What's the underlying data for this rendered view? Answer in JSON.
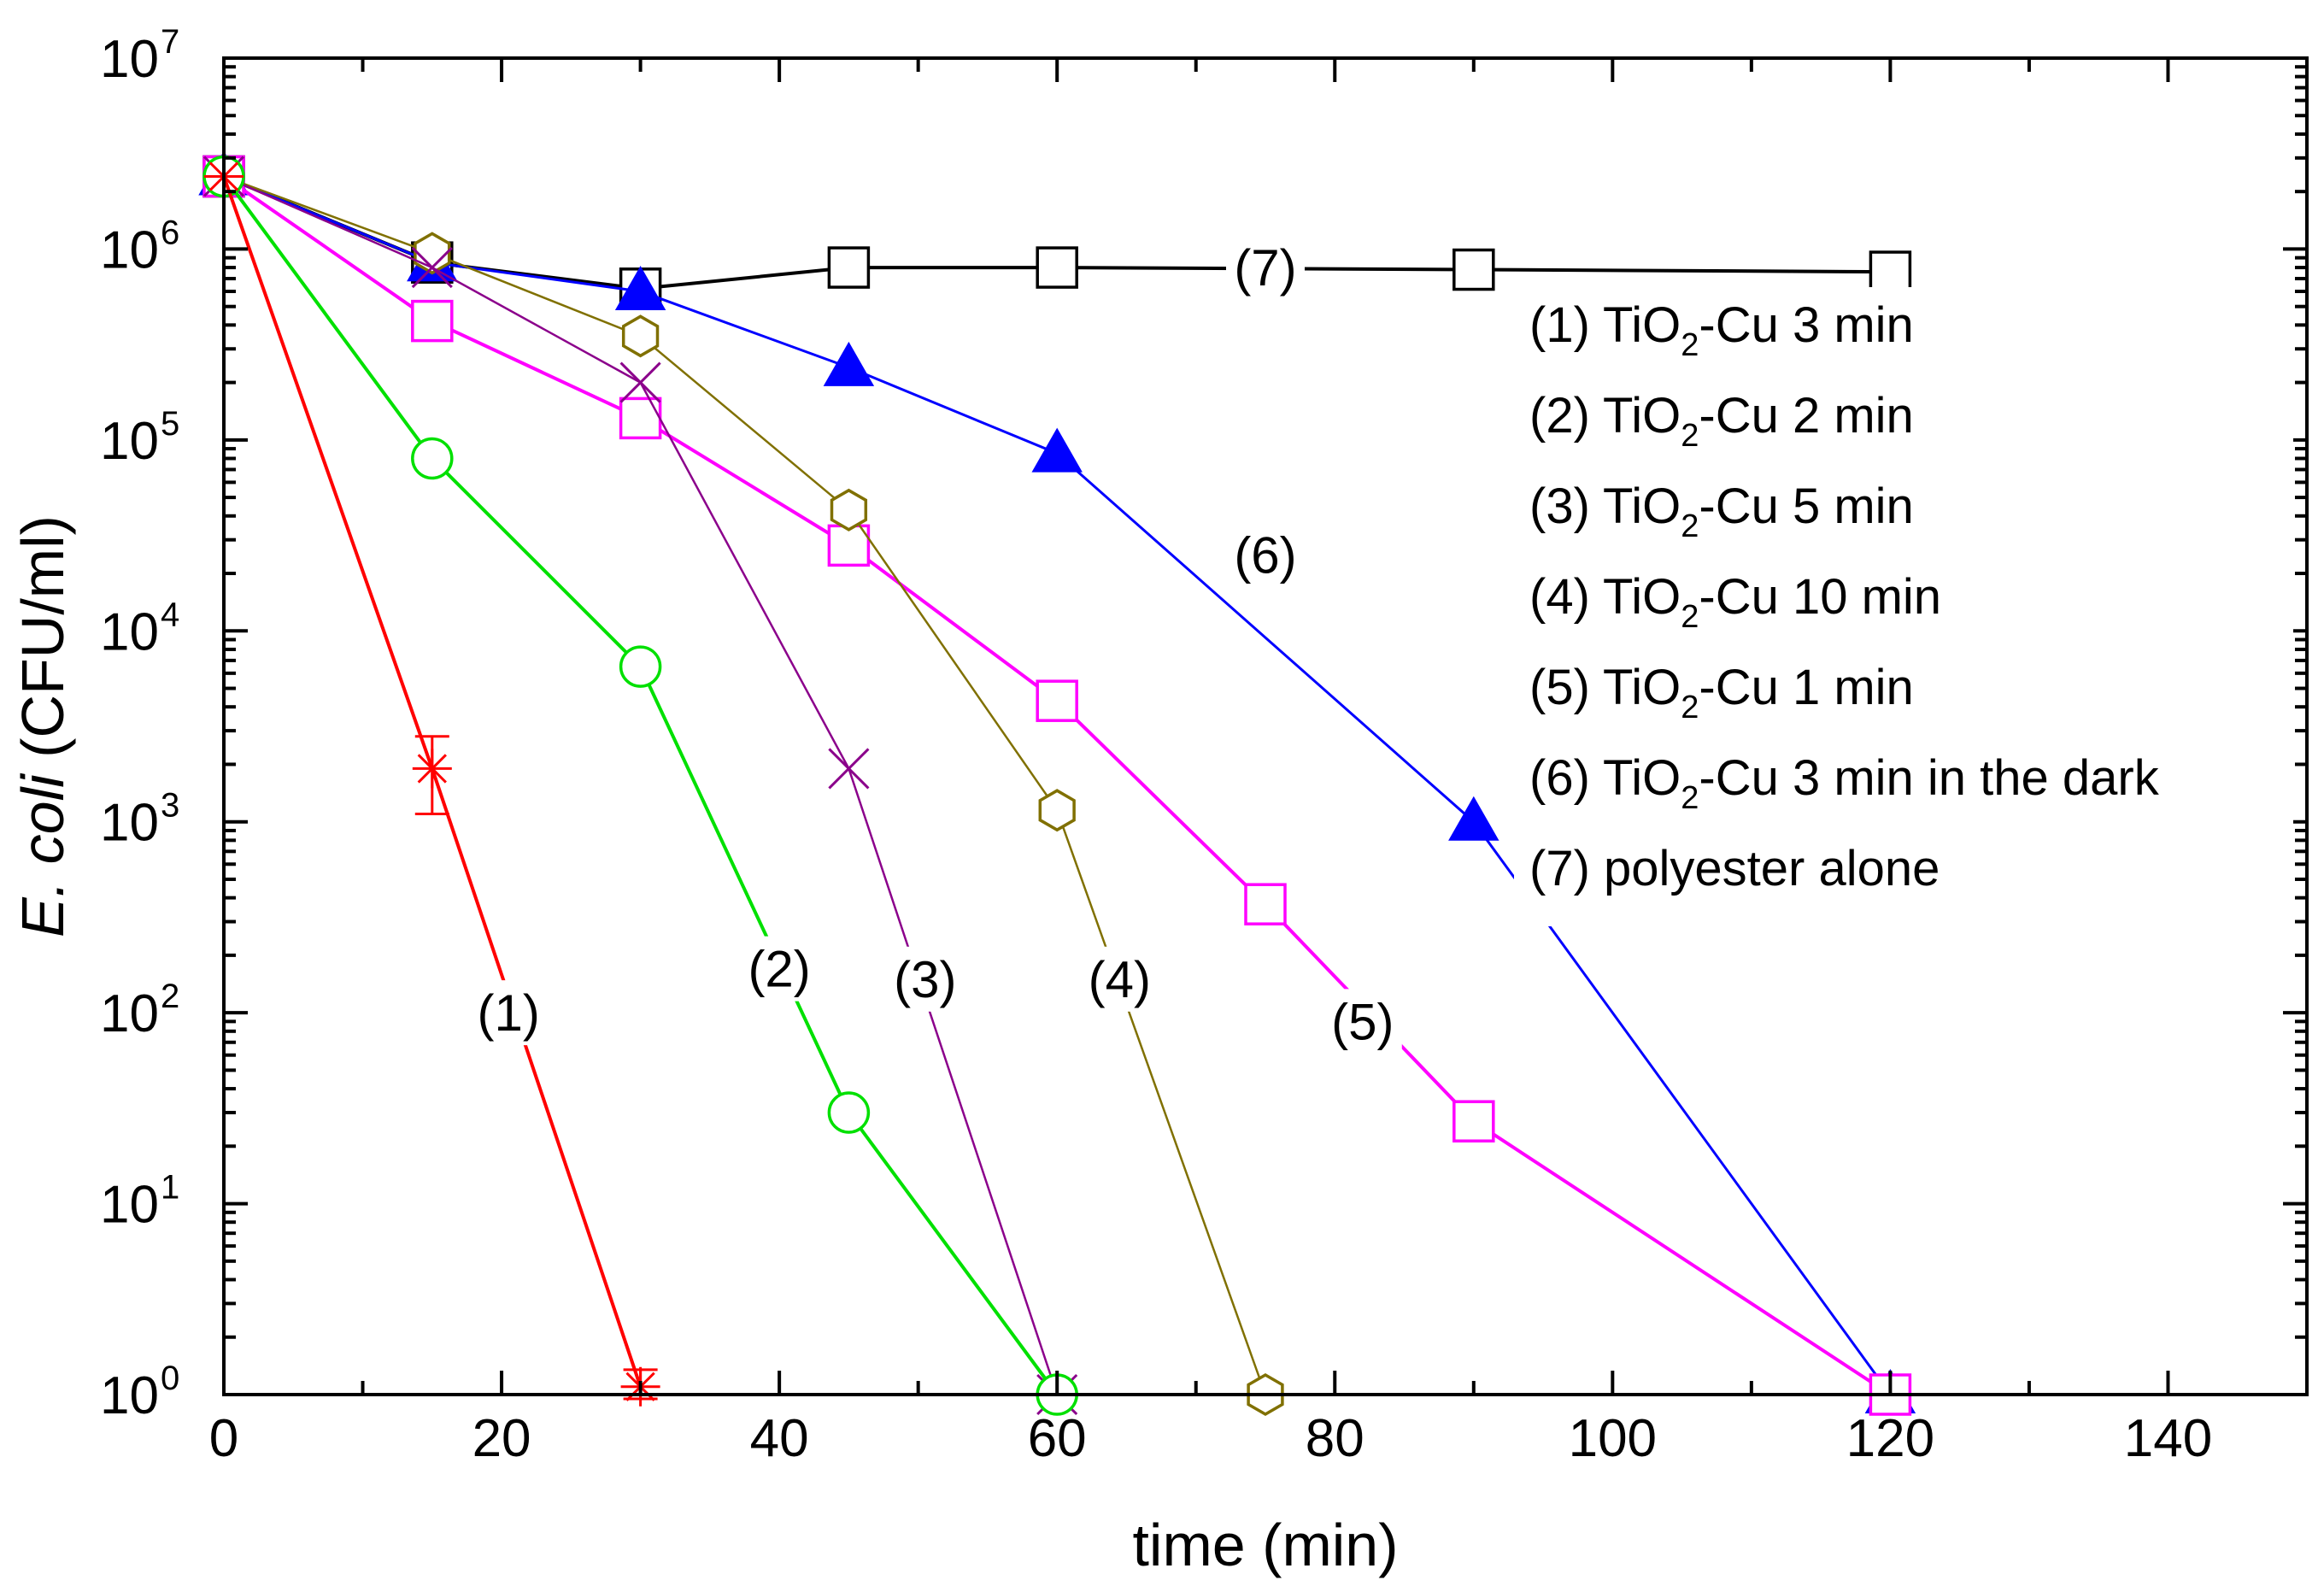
{
  "chart_data": {
    "type": "line",
    "title": "",
    "xlabel": "time (min)",
    "ylabel_italic": "E. coli",
    "ylabel_unit": "(CFU/ml)",
    "xscale": "linear",
    "yscale": "log",
    "xlim": [
      0,
      150
    ],
    "ylim": [
      1,
      10000000
    ],
    "x_ticks": [
      0,
      20,
      40,
      60,
      80,
      100,
      120,
      140
    ],
    "x_tick_labels": [
      "0",
      "20",
      "40",
      "60",
      "80",
      "100",
      "120",
      "140"
    ],
    "y_ticks_exp": [
      0,
      1,
      2,
      3,
      4,
      5,
      6,
      7
    ],
    "y_tick_base": "10",
    "y_tick_exponents": [
      "0",
      "1",
      "2",
      "3",
      "4",
      "5",
      "6",
      "7"
    ],
    "legend_position": "upper-right",
    "series": [
      {
        "id": "1",
        "tag": "(1)",
        "legend_prefix": "(1) TiO",
        "legend_sub": "2",
        "legend_suffix": "-Cu 3 min",
        "color": "#ff0000",
        "marker": "asterisk",
        "x": [
          0,
          15,
          30
        ],
        "y": [
          2400000,
          1900,
          1.1
        ],
        "errors": [
          {
            "x": 15,
            "low": 1100,
            "high": 2800
          },
          {
            "x": 30,
            "low": 0.95,
            "high": 1.35
          }
        ]
      },
      {
        "id": "2",
        "tag": "(2)",
        "legend_prefix": "(2) TiO",
        "legend_sub": "2",
        "legend_suffix": "-Cu 2 min",
        "color": "#00e000",
        "marker": "circle",
        "x": [
          0,
          15,
          30,
          45,
          60
        ],
        "y": [
          2400000,
          80000,
          6500,
          30,
          1
        ]
      },
      {
        "id": "3",
        "tag": "(3)",
        "legend_prefix": "(3) TiO",
        "legend_sub": "2",
        "legend_suffix": "-Cu 5 min",
        "color": "#8b008b",
        "marker": "x",
        "x": [
          0,
          15,
          30,
          45,
          60
        ],
        "y": [
          2400000,
          800000,
          200000,
          1900,
          1
        ]
      },
      {
        "id": "4",
        "tag": "(4)",
        "legend_prefix": "(4) TiO",
        "legend_sub": "2",
        "legend_suffix": "-Cu 10 min",
        "color": "#807000",
        "marker": "hexagon",
        "x": [
          0,
          15,
          30,
          45,
          60,
          75
        ],
        "y": [
          2400000,
          950000,
          350000,
          43000,
          1150,
          1
        ]
      },
      {
        "id": "5",
        "tag": "(5)",
        "legend_prefix": "(5) TiO",
        "legend_sub": "2",
        "legend_suffix": "-Cu 1 min",
        "color": "#ff00ff",
        "marker": "square",
        "x": [
          0,
          15,
          30,
          45,
          60,
          75,
          90,
          120
        ],
        "y": [
          2400000,
          420000,
          130000,
          28000,
          4300,
          370,
          27,
          1
        ]
      },
      {
        "id": "6",
        "tag": "(6)",
        "legend_prefix": "(6) TiO",
        "legend_sub": "2",
        "legend_suffix": "-Cu 3 min in the dark",
        "color": "#0000ff",
        "marker": "triangle",
        "x": [
          0,
          15,
          30,
          45,
          60,
          90,
          120
        ],
        "y": [
          2400000,
          850000,
          600000,
          240000,
          85000,
          1000,
          1
        ]
      },
      {
        "id": "7",
        "tag": "(7)",
        "legend_prefix": "(7) polyester alone",
        "legend_sub": "",
        "legend_suffix": "",
        "color": "#000000",
        "marker": "square",
        "x": [
          0,
          15,
          30,
          45,
          60,
          90,
          120
        ],
        "y": [
          2400000,
          850000,
          620000,
          800000,
          800000,
          780000,
          760000
        ]
      }
    ],
    "curve_labels": [
      {
        "text": "(1)",
        "x": 20.5,
        "y": 100
      },
      {
        "text": "(2)",
        "x": 40,
        "y": 170
      },
      {
        "text": "(3)",
        "x": 50.5,
        "y": 150
      },
      {
        "text": "(4)",
        "x": 64.5,
        "y": 150
      },
      {
        "text": "(5)",
        "x": 82,
        "y": 90
      },
      {
        "text": "(6)",
        "x": 75,
        "y": 25000
      },
      {
        "text": "(7)",
        "x": 75,
        "y": 800000
      }
    ]
  }
}
